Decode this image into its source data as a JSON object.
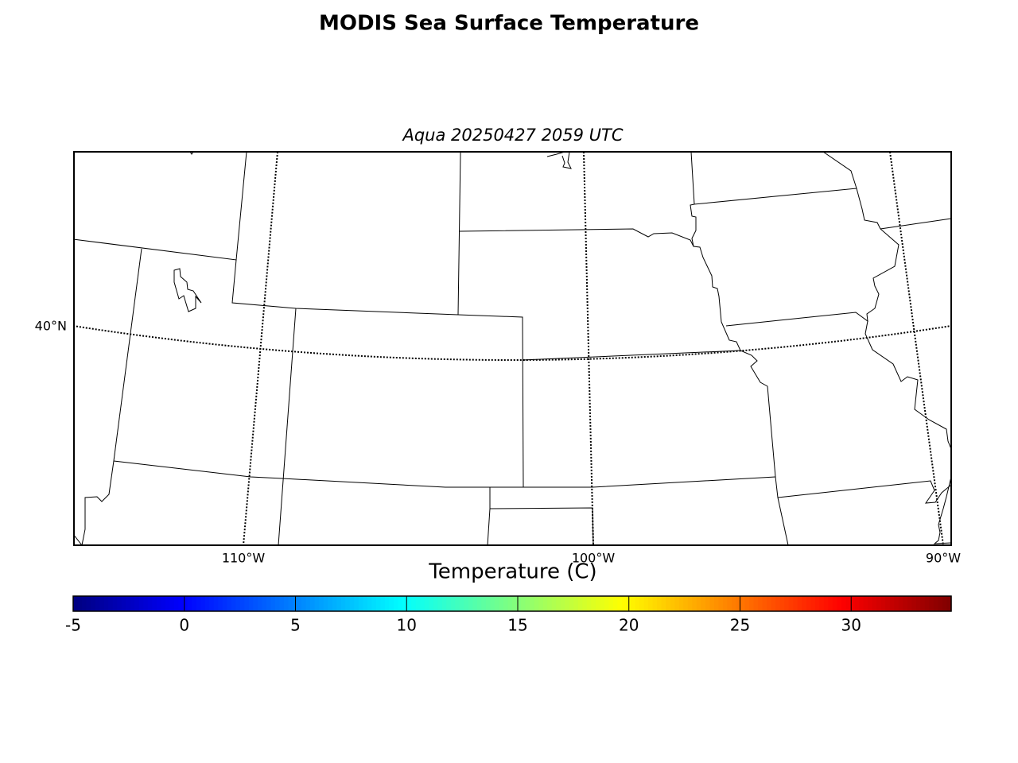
{
  "title": "MODIS Sea Surface Temperature",
  "subtitle": "Aqua 20250427 2059 UTC",
  "map": {
    "parallels": [
      {
        "value": 40,
        "label": "40°N"
      }
    ],
    "meridians": [
      {
        "value": -110,
        "label": "110°W"
      },
      {
        "value": -100,
        "label": "100°W"
      },
      {
        "value": -90,
        "label": "90°W"
      }
    ]
  },
  "colorbar": {
    "label": "Temperature (C)",
    "colormap": "jet",
    "lim": [
      -5,
      34.5
    ],
    "ticks": [
      -5,
      0,
      5,
      10,
      15,
      20,
      25,
      30
    ]
  }
}
